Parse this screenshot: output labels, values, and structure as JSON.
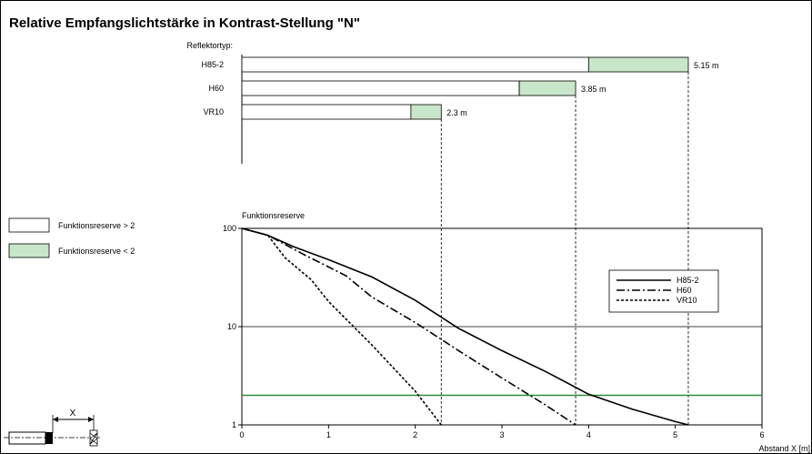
{
  "title": "Relative Empfangslichtstärke in Kontrast-Stellung \"N\"",
  "reflektor_label": "Reflektortyp:",
  "legend_left": [
    {
      "label": "Funktionsreserve > 2",
      "color": "#ffffff"
    },
    {
      "label": "Funktionsreserve < 2",
      "color": "#c8e6c9"
    }
  ],
  "colors": {
    "green_bar": "#c8e6c9",
    "threshold_line": "#2e8b3d"
  },
  "diagram_label": "X",
  "chart_data": [
    {
      "type": "bar",
      "title": "",
      "categories": [
        "H85-2",
        "H60",
        "VR10"
      ],
      "values": [
        5.15,
        3.85,
        2.3
      ],
      "value_labels": [
        "5.15 m",
        "3.85 m",
        "2.3 m"
      ],
      "reserve_gt2_end": [
        4.0,
        3.2,
        1.95
      ],
      "xlim": [
        0,
        6
      ]
    },
    {
      "type": "line",
      "title": "",
      "ylabel": "Funktionsreserve",
      "xlabel": "Abstand X [m]",
      "xlim": [
        0,
        6
      ],
      "ylim": [
        1,
        100
      ],
      "yscale": "log",
      "x_ticks": [
        "0",
        "1",
        "2",
        "3",
        "4",
        "5",
        "6"
      ],
      "y_ticks": [
        "1",
        "10",
        "100"
      ],
      "threshold": 2,
      "grid": "horizontal at 10",
      "legend_position": "right",
      "series": [
        {
          "name": "H85-2",
          "style": "solid",
          "x": [
            0,
            0.3,
            0.6,
            1.0,
            1.5,
            2.0,
            2.5,
            3.0,
            3.5,
            4.0,
            4.5,
            5.0,
            5.15
          ],
          "y": [
            100,
            85,
            65,
            48,
            32,
            18.5,
            9.6,
            5.7,
            3.5,
            2.05,
            1.45,
            1.08,
            1.0
          ]
        },
        {
          "name": "H60",
          "style": "dash-dot",
          "x": [
            0,
            0.3,
            0.7,
            1.2,
            1.5,
            2.0,
            2.5,
            3.0,
            3.5,
            3.85
          ],
          "y": [
            100,
            85,
            55,
            33,
            20,
            11,
            5.7,
            3.0,
            1.6,
            1.0
          ]
        },
        {
          "name": "VR10",
          "style": "dashed",
          "x": [
            0,
            0.3,
            0.5,
            0.8,
            1.0,
            1.5,
            2.0,
            2.3
          ],
          "y": [
            100,
            85,
            50,
            30,
            18,
            6.5,
            2.2,
            1.0
          ]
        }
      ]
    }
  ]
}
